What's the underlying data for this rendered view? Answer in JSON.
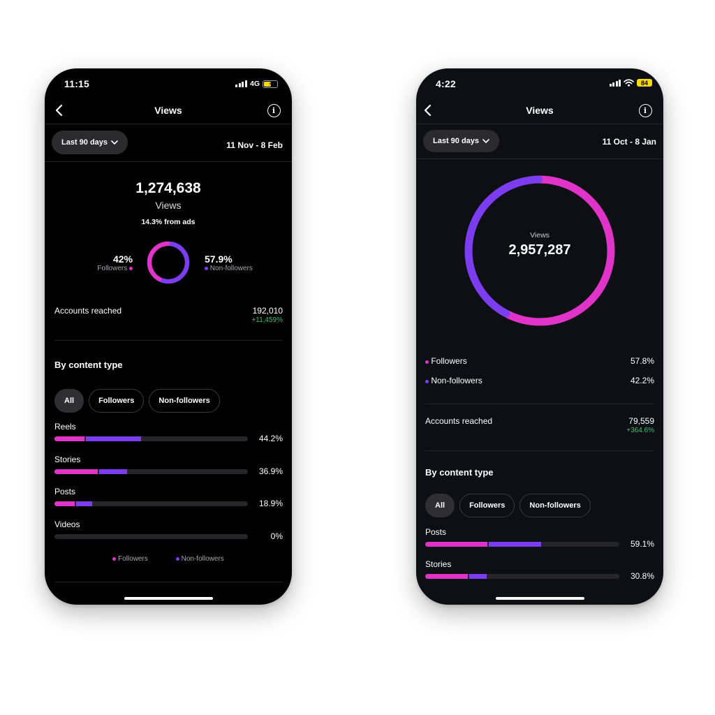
{
  "phone1": {
    "status": {
      "time": "11:15",
      "network": "4G"
    },
    "header": {
      "title": "Views"
    },
    "filter": {
      "label": "Last 90 days",
      "date_range": "11 Nov - 8 Feb"
    },
    "summary": {
      "total": "1,274,638",
      "label": "Views",
      "ads_note": "14.3% from ads"
    },
    "donut": {
      "followers_pct": "42%",
      "followers_label": "Followers",
      "followers_value": 42,
      "nonfollowers_pct": "57.9%",
      "nonfollowers_label": "Non-followers",
      "nonfollowers_value": 57.9
    },
    "reach": {
      "label": "Accounts reached",
      "value": "192,010",
      "change": "+11,459%"
    },
    "content": {
      "title": "By content type",
      "chips": [
        "All",
        "Followers",
        "Non-followers"
      ],
      "items": [
        {
          "label": "Reels",
          "pct": "44.2%",
          "followers_share": 15.7,
          "nonfollowers_share": 28.5
        },
        {
          "label": "Stories",
          "pct": "36.9%",
          "followers_share": 22.5,
          "nonfollowers_share": 14.4
        },
        {
          "label": "Posts",
          "pct": "18.9%",
          "followers_share": 10.5,
          "nonfollowers_share": 8.4
        },
        {
          "label": "Videos",
          "pct": "0%",
          "followers_share": 0,
          "nonfollowers_share": 0
        }
      ],
      "legend": {
        "followers": "Followers",
        "nonfollowers": "Non-followers"
      }
    }
  },
  "phone2": {
    "status": {
      "time": "4:22",
      "battery": "84"
    },
    "header": {
      "title": "Views"
    },
    "filter": {
      "label": "Last 90 days",
      "date_range": "11 Oct - 8 Jan"
    },
    "donut": {
      "label": "Views",
      "total": "2,957,287",
      "followers_value": 57.8,
      "nonfollowers_value": 42.2
    },
    "breakdown": [
      {
        "label": "Followers",
        "pct": "57.8%"
      },
      {
        "label": "Non-followers",
        "pct": "42.2%"
      }
    ],
    "reach": {
      "label": "Accounts reached",
      "value": "79,559",
      "change": "+364.6%"
    },
    "content": {
      "title": "By content type",
      "chips": [
        "All",
        "Followers",
        "Non-followers"
      ],
      "items": [
        {
          "label": "Posts",
          "pct": "59.1%",
          "followers_share": 32.0,
          "nonfollowers_share": 27.1
        },
        {
          "label": "Stories",
          "pct": "30.8%",
          "followers_share": 21.9,
          "nonfollowers_share": 8.9
        }
      ]
    }
  },
  "colors": {
    "followers": "#e033c8",
    "nonfollowers": "#7c3cf0",
    "positive": "#3ec46d"
  }
}
